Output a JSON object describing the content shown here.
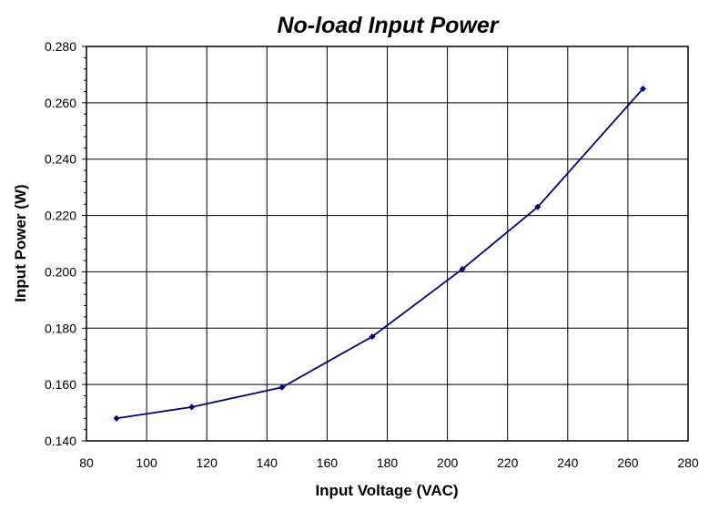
{
  "chart_data": {
    "type": "line",
    "title": "No-load Input Power",
    "xlabel": "Input Voltage (VAC)",
    "ylabel": "Input Power (W)",
    "xlim": [
      80,
      280
    ],
    "ylim": [
      0.14,
      0.28
    ],
    "xticks": [
      "80",
      "100",
      "120",
      "140",
      "160",
      "180",
      "200",
      "220",
      "240",
      "260",
      "280"
    ],
    "yticks": [
      "0.140",
      "0.160",
      "0.180",
      "0.200",
      "0.220",
      "0.240",
      "0.260",
      "0.280"
    ],
    "grid": true,
    "legend": "none",
    "series": [
      {
        "color": "#000080",
        "x": [
          90,
          115,
          145,
          175,
          205,
          230,
          265
        ],
        "y": [
          0.148,
          0.152,
          0.159,
          0.177,
          0.201,
          0.223,
          0.265
        ]
      }
    ]
  }
}
